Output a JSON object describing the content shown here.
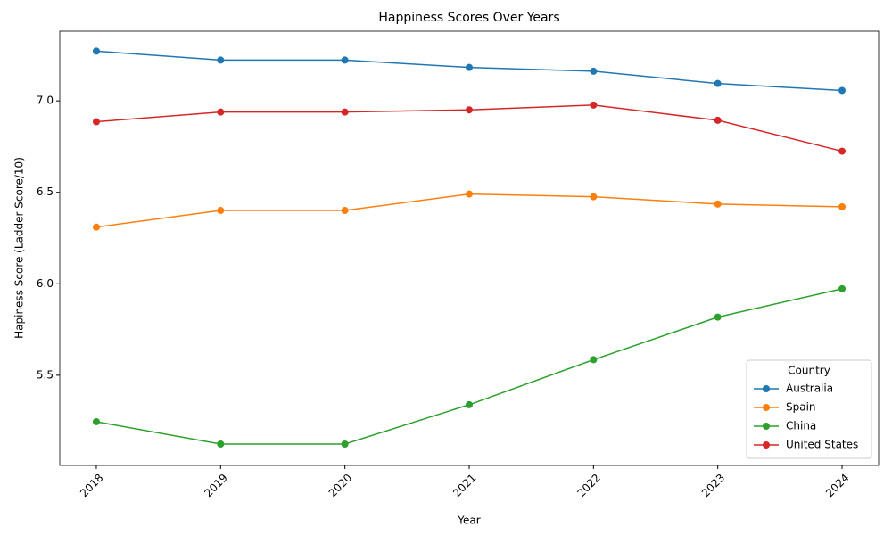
{
  "chart_data": {
    "type": "line",
    "title": "Happiness Scores Over Years",
    "x_label": "Year",
    "y_label": "Hapiness Score (Ladder Score/10)",
    "x": [
      2018,
      2019,
      2020,
      2021,
      2022,
      2023,
      2024
    ],
    "xlim": [
      2017.706,
      2024.294
    ],
    "xticks": [
      2018,
      2019,
      2020,
      2021,
      2022,
      2023,
      2024
    ],
    "ylim": [
      5.007,
      7.381
    ],
    "yticks": [
      5.5,
      {
        "value": 6.0,
        "label": "6.0"
      },
      6.5,
      {
        "value": 7.0,
        "label": "7.0"
      }
    ],
    "legend_title": "Country",
    "legend_position": "lower right",
    "series": [
      {
        "name": "Australia",
        "color": "#1f77b4",
        "values": [
          7.272,
          7.223,
          7.223,
          7.183,
          7.162,
          7.095,
          7.057
        ]
      },
      {
        "name": "Spain",
        "color": "#ff7f0e",
        "values": [
          6.31,
          6.401,
          6.401,
          6.491,
          6.476,
          6.436,
          6.421
        ]
      },
      {
        "name": "China",
        "color": "#2ca02c",
        "values": [
          5.246,
          5.124,
          5.124,
          5.339,
          5.585,
          5.818,
          5.973
        ]
      },
      {
        "name": "United States",
        "color": "#d62728",
        "values": [
          6.886,
          6.939,
          6.939,
          6.951,
          6.977,
          6.894,
          6.725
        ]
      }
    ]
  }
}
